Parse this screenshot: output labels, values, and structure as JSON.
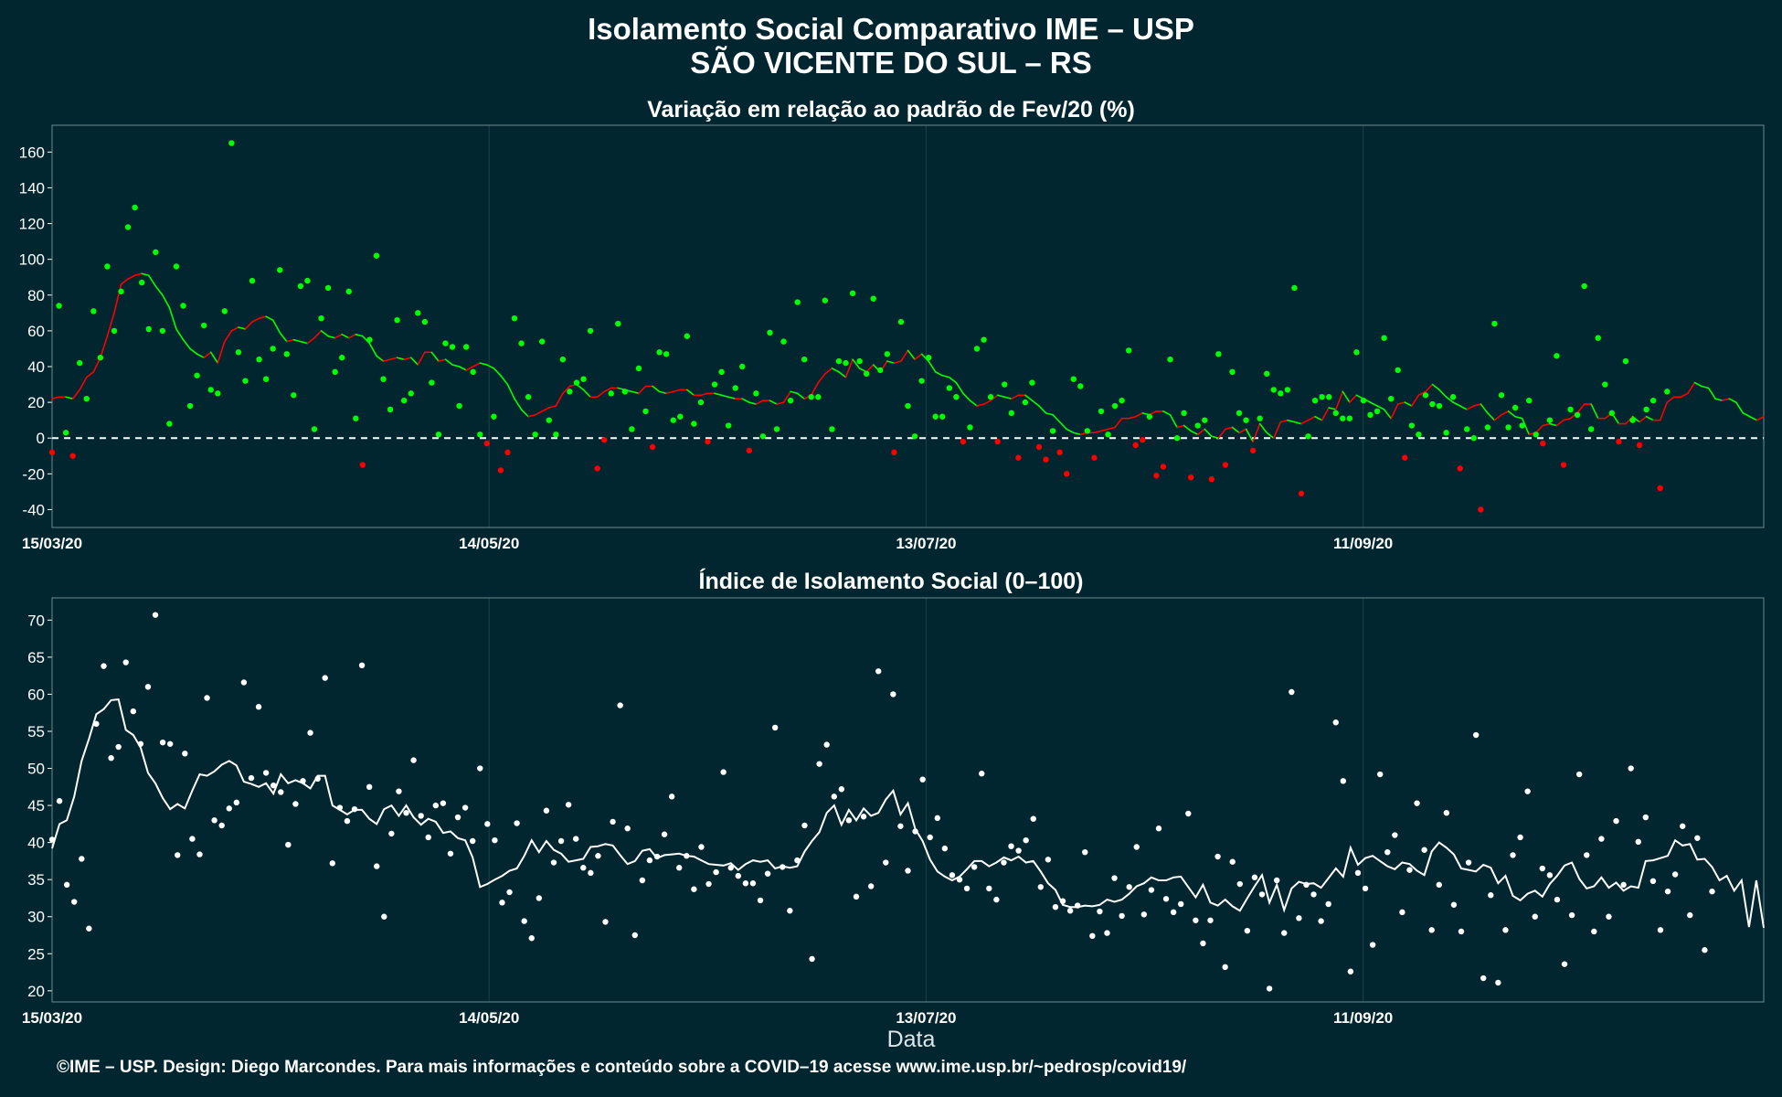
{
  "title": {
    "line1": "Isolamento Social Comparativo IME – USP",
    "line2": "SÃO VICENTE DO SUL – RS"
  },
  "footer": "©IME – USP. Design: Diego Marcondes. Para mais informações e conteúdo sobre a COVID–19 acesse www.ime.usp.br/~pedrosp/covid19/",
  "colors": {
    "background": "#02262f",
    "positive": "#00ff00",
    "negative": "#ff0000",
    "index_series": "#ffffff",
    "grid": "#1d4048"
  },
  "chart_data": [
    {
      "type": "scatter",
      "title": "Variação em relação ao padrão de Fev/20 (%)",
      "xlabel": "",
      "ylabel": "",
      "x_ticks": [
        "15/03/20",
        "14/05/20",
        "13/07/20",
        "11/09/20"
      ],
      "x_start": "2020-03-15",
      "x_end": "2020-11-05",
      "ylim": [
        -50,
        175
      ],
      "y_ticks": [
        -40,
        -20,
        0,
        20,
        40,
        60,
        80,
        100,
        120,
        140,
        160
      ],
      "reference_line": 0,
      "series": [
        {
          "kind": "points",
          "values": [
            -8,
            74,
            3,
            -10,
            42,
            22,
            71,
            45,
            96,
            60,
            82,
            118,
            129,
            87,
            61,
            104,
            60,
            8,
            96,
            74,
            18,
            35,
            63,
            27,
            25,
            71,
            165,
            48,
            32,
            88,
            44,
            33,
            50,
            94,
            47,
            24,
            85,
            88,
            5,
            67,
            84,
            37,
            45,
            82,
            11,
            -15,
            55,
            102,
            33,
            16,
            66,
            21,
            25,
            70,
            65,
            31,
            2,
            53,
            51,
            18,
            51,
            37,
            2,
            -3,
            12,
            -18,
            -8,
            67,
            53,
            23,
            2,
            54,
            10,
            2,
            44,
            26,
            31,
            33,
            60,
            -17,
            -1,
            25,
            64,
            26,
            5,
            39,
            15,
            -5,
            48,
            47,
            10,
            12,
            57,
            8,
            20,
            -2,
            30,
            37,
            7,
            28,
            40,
            -7,
            25,
            1,
            59,
            5,
            54,
            21,
            76,
            44,
            23,
            23,
            77,
            5,
            43,
            42,
            81,
            43,
            36,
            78,
            38,
            47,
            -8,
            65,
            18,
            1,
            32,
            45,
            12,
            12,
            28,
            23,
            -2,
            6,
            50,
            55,
            23,
            -2,
            30,
            14,
            -11,
            20,
            31,
            -5,
            -12,
            4,
            -8,
            -20,
            33,
            29,
            4,
            -11,
            15,
            2,
            18,
            21,
            49,
            -4,
            -1,
            12,
            -21,
            -16,
            44,
            0,
            14,
            -22,
            7,
            10,
            -23,
            47,
            -15,
            37,
            14,
            10,
            -7,
            11,
            36,
            27,
            25,
            27,
            84,
            -31,
            1,
            21,
            23,
            23,
            14,
            11,
            11,
            48,
            21,
            13,
            15,
            56,
            22,
            38,
            -11,
            7,
            2,
            24,
            19,
            18,
            3,
            23,
            -17,
            5,
            0,
            -40,
            6,
            64,
            24,
            6,
            17,
            7,
            21,
            2,
            -3,
            10,
            46,
            -15,
            16,
            13,
            85,
            5,
            56,
            30,
            14,
            -2,
            43,
            10,
            -4,
            16,
            21,
            -28,
            26
          ]
        },
        {
          "kind": "moving_average",
          "values": [
            22,
            23,
            23,
            22,
            27,
            34,
            37,
            45,
            57,
            70,
            86,
            89,
            91,
            92,
            91,
            85,
            80,
            73,
            61,
            55,
            50,
            47,
            45,
            48,
            42,
            54,
            60,
            62,
            61,
            65,
            67,
            68,
            66,
            59,
            54,
            55,
            54,
            53,
            56,
            60,
            57,
            56,
            58,
            56,
            58,
            57,
            53,
            46,
            43,
            44,
            45,
            44,
            45,
            41,
            48,
            48,
            43,
            44,
            41,
            40,
            38,
            40,
            42,
            41,
            39,
            35,
            30,
            22,
            16,
            12,
            13,
            15,
            17,
            18,
            25,
            29,
            30,
            27,
            23,
            23,
            26,
            28,
            28,
            27,
            26,
            25,
            29,
            29,
            26,
            25,
            26,
            27,
            27,
            24,
            24,
            25,
            25,
            24,
            23,
            22,
            22,
            20,
            19,
            21,
            21,
            19,
            20,
            26,
            25,
            22,
            24,
            31,
            36,
            39,
            37,
            34,
            44,
            39,
            37,
            41,
            37,
            43,
            42,
            43,
            49,
            44,
            47,
            43,
            37,
            35,
            34,
            31,
            25,
            21,
            18,
            19,
            21,
            24,
            23,
            22,
            24,
            24,
            21,
            18,
            14,
            13,
            9,
            5,
            3,
            2,
            3,
            3,
            4,
            5,
            6,
            11,
            11,
            12,
            14,
            13,
            15,
            15,
            13,
            6,
            7,
            4,
            2,
            5,
            1,
            0,
            5,
            6,
            3,
            5,
            -2,
            8,
            3,
            0,
            9,
            10,
            9,
            8,
            10,
            12,
            10,
            17,
            16,
            26,
            20,
            24,
            22,
            20,
            18,
            16,
            11,
            19,
            20,
            18,
            24,
            26,
            30,
            27,
            23,
            20,
            18,
            16,
            18,
            19,
            14,
            10,
            13,
            15,
            12,
            11,
            2,
            3,
            7,
            8,
            7,
            10,
            11,
            14,
            19,
            19,
            11,
            11,
            14,
            8,
            8,
            12,
            9,
            12,
            10,
            10,
            20,
            23,
            23,
            25,
            31,
            29,
            28,
            22,
            21,
            22,
            20,
            14,
            12,
            10,
            12
          ]
        }
      ]
    },
    {
      "type": "scatter",
      "title": "Índice de Isolamento Social (0–100)",
      "xlabel": "Data",
      "ylabel": "",
      "x_ticks": [
        "15/03/20",
        "14/05/20",
        "13/07/20",
        "11/09/20"
      ],
      "x_start": "2020-03-15",
      "x_end": "2020-11-05",
      "ylim": [
        18.5,
        73
      ],
      "y_ticks": [
        20,
        25,
        30,
        35,
        40,
        45,
        50,
        55,
        60,
        65,
        70
      ],
      "series": [
        {
          "kind": "points",
          "values": [
            40.4,
            45.6,
            34.3,
            32,
            37.8,
            28.4,
            56,
            63.8,
            51.4,
            52.9,
            64.3,
            57.7,
            53.3,
            61,
            70.7,
            53.5,
            53.3,
            38.3,
            52,
            40.5,
            38.4,
            59.5,
            43,
            42.3,
            44.6,
            45.4,
            61.6,
            48.7,
            58.3,
            49.4,
            47.7,
            46.8,
            39.7,
            45.2,
            48.3,
            54.8,
            48.6,
            62.2,
            37.2,
            44.7,
            42.9,
            44.5,
            63.9,
            47.5,
            36.8,
            30,
            41.2,
            46.9,
            44,
            51.1,
            43.6,
            40.7,
            45,
            45.3,
            38.5,
            43.4,
            44.7,
            40.2,
            50,
            42.5,
            40.3,
            31.9,
            33.3,
            42.6,
            29.4,
            27.1,
            32.5,
            44.3,
            37.3,
            40.2,
            45.1,
            40.5,
            36.6,
            35.9,
            38.2,
            29.3,
            42.8,
            58.5,
            41.9,
            27.5,
            34.9,
            37.6,
            38.1,
            41.1,
            46.2,
            36.6,
            38.2,
            33.7,
            39.4,
            34.4,
            36,
            49.5,
            36.6,
            35.5,
            34.5,
            34.5,
            32.2,
            35.8,
            55.5,
            36.7,
            30.8,
            37.6,
            42.3,
            24.3,
            50.6,
            53.2,
            46.2,
            47.2,
            43,
            32.7,
            43.5,
            34.1,
            63.1,
            37.3,
            60,
            42.2,
            36.2,
            41.5,
            48.5,
            40.7,
            43.3,
            39.2,
            35.6,
            35,
            33.8,
            36.7,
            49.3,
            33.8,
            32.3,
            37.3,
            39.5,
            38.9,
            40.3,
            43.2,
            34,
            37.7,
            31.3,
            32.1,
            30.8,
            31.5,
            38.7,
            27.4,
            30.7,
            27.8,
            35.2,
            30.1,
            34,
            39.4,
            30.3,
            33.6,
            41.9,
            32.4,
            30.6,
            31.7,
            43.9,
            29.5,
            26.4,
            29.5,
            38.1,
            23.2,
            37.4,
            34.4,
            28.1,
            35.3,
            33,
            20.3,
            34.9,
            27.8,
            60.3,
            29.8,
            34.3,
            33,
            29.4,
            31.7,
            56.2,
            48.3,
            22.6,
            35.9,
            33.8,
            26.2,
            49.2,
            38.7,
            41,
            30.6,
            36.3,
            45.3,
            39,
            28.2,
            34.3,
            44,
            31.6,
            28,
            37.3,
            54.5,
            21.7,
            32.9,
            21.1,
            28.2,
            38.3,
            40.7,
            46.9,
            30,
            36.5,
            35.6,
            32.3,
            23.6,
            30.2,
            49.2,
            38.3,
            28,
            40.5,
            30,
            42.9,
            34.3,
            50,
            40.1,
            43.4,
            34.8,
            28.2,
            33.4,
            35.7,
            42.2,
            30.2,
            40.6,
            25.5,
            33.4
          ]
        },
        {
          "kind": "moving_average",
          "values": [
            39.2,
            42.5,
            43,
            46.2,
            51,
            54,
            57.3,
            58,
            59.2,
            59.3,
            55.2,
            54.5,
            52.8,
            49.4,
            48,
            46,
            44.5,
            45.2,
            44.6,
            47,
            49.2,
            49,
            49.6,
            50.5,
            51,
            50.4,
            48.2,
            47.9,
            47.5,
            48,
            46.6,
            49.2,
            48,
            48.4,
            48,
            47.3,
            49,
            49,
            45,
            44.4,
            43.8,
            44.4,
            44.4,
            43.2,
            42.5,
            44.5,
            45,
            43.6,
            45,
            43.4,
            42.4,
            43.2,
            42.8,
            41.3,
            41.5,
            40.6,
            40.3,
            38,
            34,
            34.4,
            35,
            35.5,
            36.2,
            36.5,
            38.2,
            40.3,
            38.7,
            40.2,
            39,
            38.5,
            37.4,
            37.6,
            37.8,
            39.4,
            39.5,
            39.8,
            39.6,
            38.3,
            37.1,
            37.5,
            38.9,
            39.1,
            37.9,
            38.3,
            38.4,
            38.5,
            38.2,
            38.1,
            37.6,
            37.1,
            37,
            36.9,
            37.2,
            36.3,
            37.1,
            37.6,
            37.4,
            37.6,
            36.5,
            36.8,
            36.6,
            36.8,
            38.8,
            40.2,
            41.4,
            44,
            45,
            42.4,
            44.4,
            43,
            44.6,
            43.6,
            44,
            45.8,
            47,
            43.8,
            45.3,
            41.8,
            40.2,
            37.7,
            36.1,
            35.4,
            34.9,
            35.4,
            36.4,
            37.5,
            37.5,
            36.8,
            37.3,
            38,
            37.6,
            38.1,
            37.3,
            37.5,
            36.1,
            34.5,
            33.6,
            31.6,
            31.3,
            31.3,
            31.5,
            31.4,
            31.6,
            32.3,
            32,
            32.3,
            33.1,
            34.1,
            34.5,
            35.3,
            34.9,
            34.9,
            35.3,
            35.4,
            34,
            32.6,
            34.3,
            31.9,
            31.5,
            32.3,
            31.4,
            30.8,
            32.5,
            34.1,
            35.6,
            31.9,
            34.3,
            30.9,
            33.8,
            34.7,
            34.4,
            34.5,
            33.9,
            35.2,
            36.5,
            35.4,
            39.3,
            37,
            37.9,
            38.2,
            37.5,
            36.8,
            36.4,
            37.3,
            37.1,
            36.2,
            35.6,
            38.8,
            40,
            39.3,
            38.4,
            36.5,
            36.3,
            36.1,
            37,
            36.6,
            34.5,
            35.5,
            32.8,
            32.2,
            33.1,
            33.5,
            32.7,
            34.4,
            35.5,
            36.9,
            37.3,
            35.1,
            33.8,
            34.1,
            35.3,
            33.9,
            34.6,
            33.5,
            34.1,
            33.9,
            37.5,
            37.6,
            37.9,
            38.2,
            40.3,
            39.6,
            39.8,
            37.7,
            37.8,
            36.7,
            34.9,
            35.5,
            33.5,
            34.9,
            28.6,
            34.9,
            28.5
          ]
        }
      ]
    }
  ]
}
